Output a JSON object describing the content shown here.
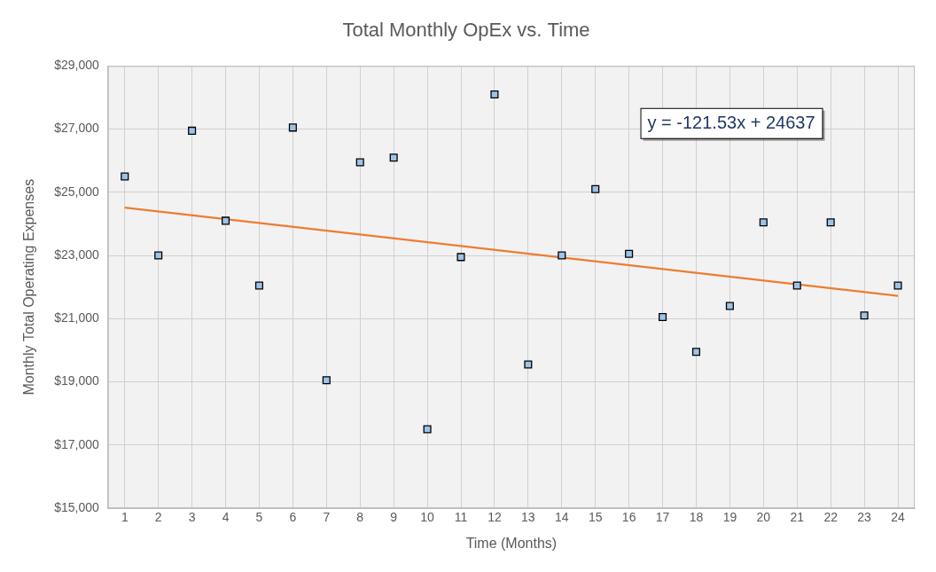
{
  "chart_data": {
    "type": "scatter",
    "title": "Total Monthly OpEx vs. Time",
    "x_label": "Time (Months)",
    "y_label": "Monthly Total Operating Expenses",
    "x": [
      1,
      2,
      3,
      4,
      5,
      6,
      7,
      8,
      9,
      10,
      11,
      12,
      13,
      14,
      15,
      16,
      17,
      18,
      19,
      20,
      21,
      22,
      23,
      24
    ],
    "values": [
      25500,
      23000,
      26950,
      24100,
      22050,
      27050,
      19050,
      25950,
      26100,
      17500,
      22950,
      28100,
      19550,
      23000,
      25100,
      23050,
      21050,
      19950,
      21400,
      24050,
      22050,
      24050,
      21100,
      22050
    ],
    "color": "#9dc3e6",
    "marker": "square",
    "xlim": [
      0.5,
      24.5
    ],
    "xticks": [
      1,
      2,
      3,
      4,
      5,
      6,
      7,
      8,
      9,
      10,
      11,
      12,
      13,
      14,
      15,
      16,
      17,
      18,
      19,
      20,
      21,
      22,
      23,
      24
    ],
    "ylim": [
      15000,
      29000
    ],
    "yticks": [
      {
        "value": 15000,
        "label": "$15,000"
      },
      {
        "value": 17000,
        "label": "$17,000"
      },
      {
        "value": 19000,
        "label": "$19,000"
      },
      {
        "value": 21000,
        "label": "$21,000"
      },
      {
        "value": 23000,
        "label": "$23,000"
      },
      {
        "value": 25000,
        "label": "$25,000"
      },
      {
        "value": 27000,
        "label": "$27,000"
      },
      {
        "value": 29000,
        "label": "$29,000"
      }
    ],
    "grid": true,
    "trendline": {
      "x": [
        1,
        24
      ],
      "values": [
        24515,
        21720
      ],
      "color": "#ed7d31"
    },
    "annotation": "y = -121.53x + 24637"
  }
}
